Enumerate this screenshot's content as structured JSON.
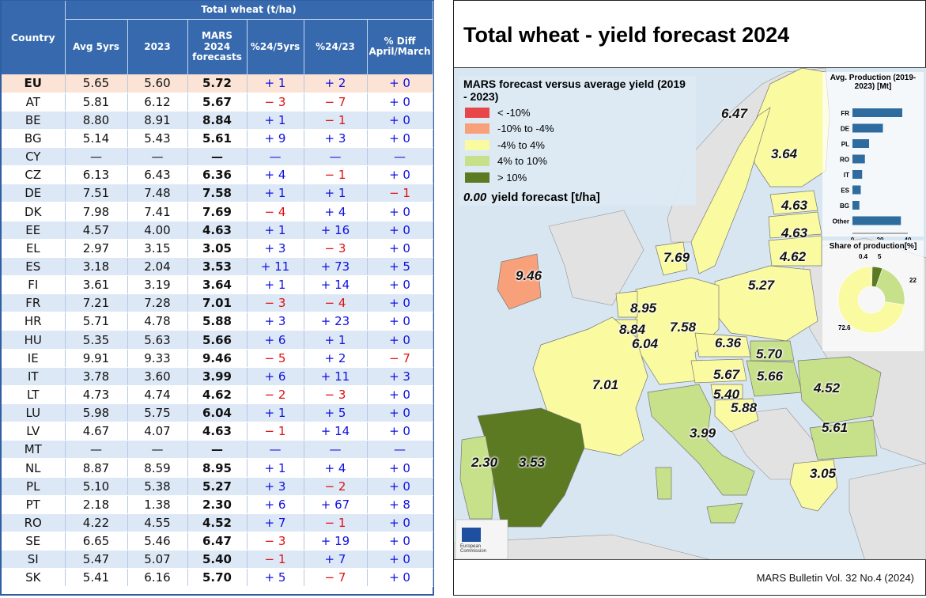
{
  "table": {
    "header_group": "Total wheat (t/ha)",
    "col_country": "Country",
    "columns": [
      "Avg 5yrs",
      "2023",
      "MARS 2024 forecasts",
      "%24/5yrs",
      "%24/23",
      "% Diff April/March"
    ],
    "rows": [
      {
        "country": "EU",
        "avg": "5.65",
        "y2023": "5.60",
        "mars": "5.72",
        "p5": "+ 1",
        "p23": "+ 2",
        "pd": "+ 0"
      },
      {
        "country": "AT",
        "avg": "5.81",
        "y2023": "6.12",
        "mars": "5.67",
        "p5": "− 3",
        "p23": "− 7",
        "pd": "+ 0"
      },
      {
        "country": "BE",
        "avg": "8.80",
        "y2023": "8.91",
        "mars": "8.84",
        "p5": "+ 1",
        "p23": "− 1",
        "pd": "+ 0"
      },
      {
        "country": "BG",
        "avg": "5.14",
        "y2023": "5.43",
        "mars": "5.61",
        "p5": "+ 9",
        "p23": "+ 3",
        "pd": "+ 0"
      },
      {
        "country": "CY",
        "avg": "—",
        "y2023": "—",
        "mars": "—",
        "p5": "—",
        "p23": "—",
        "pd": "—"
      },
      {
        "country": "CZ",
        "avg": "6.13",
        "y2023": "6.43",
        "mars": "6.36",
        "p5": "+ 4",
        "p23": "− 1",
        "pd": "+ 0"
      },
      {
        "country": "DE",
        "avg": "7.51",
        "y2023": "7.48",
        "mars": "7.58",
        "p5": "+ 1",
        "p23": "+ 1",
        "pd": "− 1"
      },
      {
        "country": "DK",
        "avg": "7.98",
        "y2023": "7.41",
        "mars": "7.69",
        "p5": "− 4",
        "p23": "+ 4",
        "pd": "+ 0"
      },
      {
        "country": "EE",
        "avg": "4.57",
        "y2023": "4.00",
        "mars": "4.63",
        "p5": "+ 1",
        "p23": "+ 16",
        "pd": "+ 0"
      },
      {
        "country": "EL",
        "avg": "2.97",
        "y2023": "3.15",
        "mars": "3.05",
        "p5": "+ 3",
        "p23": "− 3",
        "pd": "+ 0"
      },
      {
        "country": "ES",
        "avg": "3.18",
        "y2023": "2.04",
        "mars": "3.53",
        "p5": "+ 11",
        "p23": "+ 73",
        "pd": "+ 5"
      },
      {
        "country": "FI",
        "avg": "3.61",
        "y2023": "3.19",
        "mars": "3.64",
        "p5": "+ 1",
        "p23": "+ 14",
        "pd": "+ 0"
      },
      {
        "country": "FR",
        "avg": "7.21",
        "y2023": "7.28",
        "mars": "7.01",
        "p5": "− 3",
        "p23": "− 4",
        "pd": "+ 0"
      },
      {
        "country": "HR",
        "avg": "5.71",
        "y2023": "4.78",
        "mars": "5.88",
        "p5": "+ 3",
        "p23": "+ 23",
        "pd": "+ 0"
      },
      {
        "country": "HU",
        "avg": "5.35",
        "y2023": "5.63",
        "mars": "5.66",
        "p5": "+ 6",
        "p23": "+ 1",
        "pd": "+ 0"
      },
      {
        "country": "IE",
        "avg": "9.91",
        "y2023": "9.33",
        "mars": "9.46",
        "p5": "− 5",
        "p23": "+ 2",
        "pd": "− 7"
      },
      {
        "country": "IT",
        "avg": "3.78",
        "y2023": "3.60",
        "mars": "3.99",
        "p5": "+ 6",
        "p23": "+ 11",
        "pd": "+ 3"
      },
      {
        "country": "LT",
        "avg": "4.73",
        "y2023": "4.74",
        "mars": "4.62",
        "p5": "− 2",
        "p23": "− 3",
        "pd": "+ 0"
      },
      {
        "country": "LU",
        "avg": "5.98",
        "y2023": "5.75",
        "mars": "6.04",
        "p5": "+ 1",
        "p23": "+ 5",
        "pd": "+ 0"
      },
      {
        "country": "LV",
        "avg": "4.67",
        "y2023": "4.07",
        "mars": "4.63",
        "p5": "− 1",
        "p23": "+ 14",
        "pd": "+ 0"
      },
      {
        "country": "MT",
        "avg": "—",
        "y2023": "—",
        "mars": "—",
        "p5": "—",
        "p23": "—",
        "pd": "—"
      },
      {
        "country": "NL",
        "avg": "8.87",
        "y2023": "8.59",
        "mars": "8.95",
        "p5": "+ 1",
        "p23": "+ 4",
        "pd": "+ 0"
      },
      {
        "country": "PL",
        "avg": "5.10",
        "y2023": "5.38",
        "mars": "5.27",
        "p5": "+ 3",
        "p23": "− 2",
        "pd": "+ 0"
      },
      {
        "country": "PT",
        "avg": "2.18",
        "y2023": "1.38",
        "mars": "2.30",
        "p5": "+ 6",
        "p23": "+ 67",
        "pd": "+ 8"
      },
      {
        "country": "RO",
        "avg": "4.22",
        "y2023": "4.55",
        "mars": "4.52",
        "p5": "+ 7",
        "p23": "− 1",
        "pd": "+ 0"
      },
      {
        "country": "SE",
        "avg": "6.65",
        "y2023": "5.46",
        "mars": "6.47",
        "p5": "− 3",
        "p23": "+ 19",
        "pd": "+ 0"
      },
      {
        "country": "SI",
        "avg": "5.47",
        "y2023": "5.07",
        "mars": "5.40",
        "p5": "− 1",
        "p23": "+ 7",
        "pd": "+ 0"
      },
      {
        "country": "SK",
        "avg": "5.41",
        "y2023": "6.16",
        "mars": "5.70",
        "p5": "+ 5",
        "p23": "− 7",
        "pd": "+ 0"
      }
    ]
  },
  "map": {
    "title": "Total wheat - yield forecast 2024",
    "legend_title": "MARS forecast versus average yield (2019 - 2023)",
    "legend": [
      {
        "label": "< -10%",
        "color": "#e8474a"
      },
      {
        "label": "-10% to -4%",
        "color": "#f7a07a"
      },
      {
        "label": "-4% to 4%",
        "color": "#fafaa0"
      },
      {
        "label": "4% to 10%",
        "color": "#c7e08a"
      },
      {
        "label": "> 10%",
        "color": "#5b7a22"
      }
    ],
    "legend_note_value": "0.00",
    "legend_note_text": "yield forecast [t/ha]",
    "labels": [
      {
        "code": "SE",
        "value": "6.47"
      },
      {
        "code": "FI",
        "value": "3.64"
      },
      {
        "code": "EE",
        "value": "4.63"
      },
      {
        "code": "LV",
        "value": "4.63"
      },
      {
        "code": "LT",
        "value": "4.62"
      },
      {
        "code": "DK",
        "value": "7.69"
      },
      {
        "code": "IE",
        "value": "9.46"
      },
      {
        "code": "PL",
        "value": "5.27"
      },
      {
        "code": "NL",
        "value": "8.95"
      },
      {
        "code": "BE",
        "value": "8.84"
      },
      {
        "code": "LU",
        "value": "6.04"
      },
      {
        "code": "DE",
        "value": "7.58"
      },
      {
        "code": "CZ",
        "value": "6.36"
      },
      {
        "code": "SK",
        "value": "5.70"
      },
      {
        "code": "HU",
        "value": "5.66"
      },
      {
        "code": "AT",
        "value": "5.67"
      },
      {
        "code": "SI",
        "value": "5.40"
      },
      {
        "code": "HR",
        "value": "5.88"
      },
      {
        "code": "RO",
        "value": "4.52"
      },
      {
        "code": "FR",
        "value": "7.01"
      },
      {
        "code": "IT",
        "value": "3.99"
      },
      {
        "code": "BG",
        "value": "5.61"
      },
      {
        "code": "PT",
        "value": "2.30"
      },
      {
        "code": "ES",
        "value": "3.53"
      },
      {
        "code": "EL",
        "value": "3.05"
      }
    ],
    "footer": "MARS Bulletin Vol. 32 No.4 (2024)",
    "ec_logo_text": "European Commission"
  },
  "chart_data": [
    {
      "type": "bar",
      "title": "Avg. Production (2019-2023) [Mt]",
      "categories": [
        "FR",
        "DE",
        "PL",
        "RO",
        "IT",
        "ES",
        "BG",
        "Other"
      ],
      "values": [
        36,
        22,
        12,
        9,
        7,
        6,
        5,
        35
      ],
      "xlim": [
        0,
        40
      ],
      "xticks": [
        "0",
        "20",
        "40"
      ]
    },
    {
      "type": "pie",
      "title": "Share of production[%]",
      "labels": [
        "0.4",
        "5",
        "22",
        "72.6"
      ],
      "values": [
        0.4,
        5,
        22,
        72.6
      ],
      "colors": [
        "#e8474a",
        "#5b7a22",
        "#c7e08a",
        "#fafaa0"
      ]
    }
  ]
}
